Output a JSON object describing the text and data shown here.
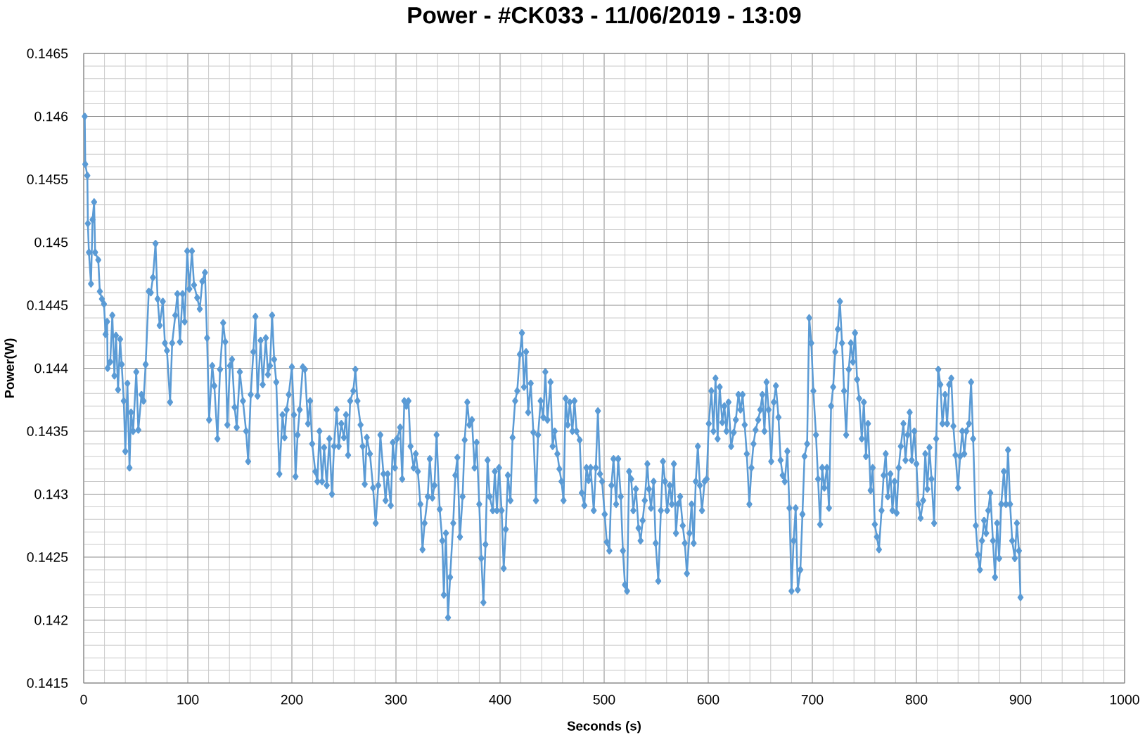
{
  "chart_data": {
    "type": "line",
    "title": "Power - #CK033 - 11/06/2019 - 13:09",
    "xlabel": "Seconds (s)",
    "ylabel": "Power(W)",
    "xlim": [
      0,
      1000
    ],
    "ylim": [
      0.1415,
      0.1465
    ],
    "xticks": [
      0,
      100,
      200,
      300,
      400,
      500,
      600,
      700,
      800,
      900,
      1000
    ],
    "yticks": [
      0.1415,
      0.142,
      0.1425,
      0.143,
      0.1435,
      0.144,
      0.1445,
      0.145,
      0.1455,
      0.146,
      0.1465
    ],
    "grid": true,
    "marker": "diamond",
    "line_style": "solid",
    "x": [
      1,
      1.5,
      3.5,
      4,
      5,
      7,
      8.5,
      10,
      11,
      14,
      15.5,
      17.5,
      19.5,
      21,
      22.5,
      23,
      25.5,
      27.5,
      29.5,
      31,
      33,
      35,
      36.5,
      38.5,
      40,
      42,
      44,
      45.5,
      47.5,
      50.5,
      52.5,
      55.5,
      57.5,
      59.5,
      62.5,
      64.5,
      66.5,
      69,
      71,
      73,
      76,
      78,
      80,
      83,
      85,
      88,
      90,
      92.5,
      95,
      97,
      99.5,
      101.5,
      104,
      106,
      109,
      111.5,
      114,
      116.5,
      118.5,
      120.5,
      123.5,
      125.5,
      128.5,
      131,
      134,
      136,
      138,
      140.5,
      142.5,
      145,
      147,
      150,
      153,
      156,
      158,
      160.5,
      163,
      165,
      167,
      170,
      172,
      175,
      177,
      179,
      181,
      183,
      185,
      188,
      191,
      193,
      195,
      197,
      200,
      202,
      203.5,
      205.5,
      207.5,
      210.5,
      212.5,
      215.5,
      217.5,
      219.5,
      222.5,
      224.5,
      226.5,
      229,
      231,
      233.5,
      236,
      238.5,
      240.5,
      243,
      245,
      247.5,
      250,
      252,
      254,
      256,
      259,
      261,
      263,
      266,
      268,
      270,
      272,
      275,
      278,
      280.5,
      283,
      285,
      288,
      290,
      292,
      295,
      297,
      299,
      301,
      304,
      306,
      308,
      310,
      312,
      314,
      317,
      319,
      321,
      323.5,
      325.5,
      327.5,
      330.5,
      332.5,
      335,
      337,
      339,
      342,
      344.5,
      346,
      348,
      350,
      352,
      355,
      357,
      359,
      361.5,
      364,
      366,
      368.5,
      370.5,
      373,
      375.5,
      377.5,
      380,
      382,
      384,
      386,
      388,
      390,
      393,
      395,
      397,
      399,
      401.5,
      403.5,
      405.5,
      407.5,
      410,
      412,
      414.5,
      416.5,
      419,
      421,
      423,
      425,
      427,
      429.5,
      432,
      434.5,
      436.5,
      439,
      441.5,
      443.5,
      445.5,
      448.5,
      450.5,
      452.5,
      455,
      457,
      459,
      461,
      463,
      465,
      467,
      469.5,
      471.5,
      473.5,
      476.5,
      478.5,
      481,
      483,
      485,
      487,
      490,
      492,
      494,
      496,
      498,
      500.5,
      502.5,
      505,
      507,
      509,
      511.5,
      513.5,
      516,
      518,
      520,
      522,
      524,
      526,
      528,
      530.5,
      533,
      535,
      537,
      539,
      541.5,
      543,
      545,
      547.5,
      549.5,
      552,
      554.5,
      556.5,
      558.5,
      560.5,
      563,
      565,
      567,
      569,
      571,
      573,
      575.5,
      577.5,
      579.5,
      582,
      584,
      586,
      588,
      590,
      592,
      594,
      596.5,
      598.5,
      600.5,
      603,
      605,
      607,
      609,
      611,
      613.5,
      615.5,
      617.5,
      619.5,
      622,
      624.5,
      626.5,
      629,
      631,
      633,
      635,
      637,
      639.5,
      641.5,
      643.5,
      645.5,
      648,
      650,
      652,
      654,
      656,
      658,
      660.5,
      663,
      665,
      667.5,
      669.5,
      671.5,
      673.5,
      676,
      678,
      680,
      682,
      684,
      686,
      688.5,
      690.5,
      692.5,
      695,
      697,
      699,
      701,
      703.5,
      705.5,
      707.5,
      709.5,
      711.5,
      714,
      716,
      718,
      720,
      722,
      724.5,
      726.5,
      728.5,
      730.5,
      732.5,
      735,
      737,
      739,
      741,
      743,
      745,
      747.5,
      749.5,
      751.5,
      753.5,
      756,
      758,
      760,
      762,
      764,
      766.5,
      768.5,
      770.5,
      772.5,
      775,
      777,
      779,
      781,
      783,
      785,
      787.5,
      789.5,
      791.5,
      793.5,
      795.5,
      798,
      800,
      802,
      804,
      806.5,
      808.5,
      810.5,
      812.5,
      814.5,
      817,
      819,
      821,
      823,
      825,
      827.5,
      829.5,
      831.5,
      833.5,
      835.5,
      837.5,
      840,
      842,
      844,
      846,
      848,
      850.5,
      852.5,
      854.5,
      857,
      859,
      861,
      863,
      865,
      867,
      869,
      871,
      873.5,
      875.5,
      877.5,
      879.5,
      881.5,
      884,
      886,
      888,
      890,
      892,
      894.5,
      896.5,
      898.5,
      900
    ],
    "series": [
      {
        "color": "#5b9bd5",
        "values": [
          0.146,
          0.14562,
          0.14553,
          0.14515,
          0.14492,
          0.14467,
          0.14518,
          0.14532,
          0.14492,
          0.14486,
          0.14461,
          0.14455,
          0.14451,
          0.14427,
          0.14437,
          0.144,
          0.14405,
          0.14442,
          0.14394,
          0.14426,
          0.14383,
          0.14423,
          0.14403,
          0.14374,
          0.14334,
          0.14388,
          0.14321,
          0.14365,
          0.1435,
          0.14397,
          0.14351,
          0.14379,
          0.14374,
          0.14403,
          0.14461,
          0.1446,
          0.14472,
          0.14499,
          0.14455,
          0.14434,
          0.14453,
          0.1442,
          0.14414,
          0.14373,
          0.1442,
          0.14442,
          0.14459,
          0.14421,
          0.14459,
          0.14437,
          0.14493,
          0.14463,
          0.14493,
          0.14466,
          0.14456,
          0.14447,
          0.14469,
          0.14476,
          0.14424,
          0.14359,
          0.14402,
          0.14386,
          0.14344,
          0.14399,
          0.14436,
          0.14421,
          0.14355,
          0.14402,
          0.14407,
          0.14369,
          0.14353,
          0.14397,
          0.14374,
          0.1435,
          0.14326,
          0.14379,
          0.14413,
          0.14441,
          0.14378,
          0.14422,
          0.14387,
          0.14424,
          0.14395,
          0.14402,
          0.14442,
          0.14407,
          0.14389,
          0.14316,
          0.14363,
          0.14345,
          0.14367,
          0.14379,
          0.14401,
          0.14363,
          0.14314,
          0.14347,
          0.14367,
          0.14401,
          0.14399,
          0.14356,
          0.14374,
          0.1434,
          0.14318,
          0.1431,
          0.1435,
          0.1431,
          0.14337,
          0.14307,
          0.14344,
          0.143,
          0.14338,
          0.14367,
          0.14338,
          0.14356,
          0.14345,
          0.14363,
          0.14331,
          0.14374,
          0.14382,
          0.14399,
          0.14374,
          0.14355,
          0.14338,
          0.14308,
          0.14345,
          0.14332,
          0.14305,
          0.14277,
          0.14307,
          0.14347,
          0.14316,
          0.14295,
          0.14316,
          0.14291,
          0.14341,
          0.14321,
          0.14344,
          0.14353,
          0.14312,
          0.14374,
          0.1437,
          0.14374,
          0.14338,
          0.14321,
          0.14332,
          0.14318,
          0.14292,
          0.14256,
          0.14277,
          0.14298,
          0.14328,
          0.14297,
          0.14307,
          0.14347,
          0.14288,
          0.14263,
          0.1422,
          0.14269,
          0.14202,
          0.14234,
          0.14277,
          0.14315,
          0.14329,
          0.14266,
          0.14298,
          0.14343,
          0.14373,
          0.14355,
          0.14359,
          0.14321,
          0.14341,
          0.14292,
          0.14249,
          0.14214,
          0.1426,
          0.14327,
          0.14298,
          0.14287,
          0.14318,
          0.14287,
          0.14321,
          0.14287,
          0.14241,
          0.14272,
          0.14315,
          0.14295,
          0.14345,
          0.14374,
          0.14382,
          0.14411,
          0.14428,
          0.14385,
          0.14413,
          0.14365,
          0.14388,
          0.14349,
          0.14295,
          0.14347,
          0.14374,
          0.14361,
          0.14397,
          0.14359,
          0.14389,
          0.14338,
          0.1435,
          0.14332,
          0.1432,
          0.1431,
          0.14295,
          0.14376,
          0.14355,
          0.14373,
          0.1435,
          0.14374,
          0.1435,
          0.14343,
          0.14301,
          0.14291,
          0.14321,
          0.14311,
          0.14321,
          0.14287,
          0.14321,
          0.14366,
          0.14316,
          0.1431,
          0.14284,
          0.14262,
          0.14255,
          0.14307,
          0.14328,
          0.14292,
          0.14328,
          0.14298,
          0.14255,
          0.14228,
          0.14223,
          0.14318,
          0.14312,
          0.14287,
          0.14304,
          0.14273,
          0.14263,
          0.14279,
          0.14295,
          0.14324,
          0.14304,
          0.14289,
          0.1431,
          0.14261,
          0.14231,
          0.14287,
          0.14326,
          0.1431,
          0.14287,
          0.14307,
          0.14292,
          0.14324,
          0.14269,
          0.14292,
          0.14298,
          0.14275,
          0.14261,
          0.14237,
          0.14269,
          0.14292,
          0.14261,
          0.1431,
          0.14338,
          0.14307,
          0.14287,
          0.1431,
          0.14312,
          0.14356,
          0.14382,
          0.1435,
          0.14392,
          0.14344,
          0.14385,
          0.14357,
          0.1437,
          0.1435,
          0.14373,
          0.14338,
          0.14349,
          0.14359,
          0.14379,
          0.14367,
          0.14379,
          0.14355,
          0.14332,
          0.14292,
          0.14321,
          0.1434,
          0.14351,
          0.14359,
          0.14367,
          0.14379,
          0.1435,
          0.14389,
          0.14367,
          0.14326,
          0.14373,
          0.14386,
          0.14361,
          0.14327,
          0.14315,
          0.1431,
          0.14334,
          0.14289,
          0.14223,
          0.14263,
          0.14289,
          0.14224,
          0.1424,
          0.14284,
          0.1433,
          0.1434,
          0.1444,
          0.1442,
          0.14382,
          0.14347,
          0.14312,
          0.14276,
          0.14321,
          0.14305,
          0.14321,
          0.14289,
          0.1437,
          0.14385,
          0.14413,
          0.14431,
          0.14453,
          0.1442,
          0.14382,
          0.14347,
          0.14399,
          0.1442,
          0.14405,
          0.14428,
          0.14391,
          0.14376,
          0.14344,
          0.14373,
          0.1433,
          0.14356,
          0.14303,
          0.14321,
          0.14276,
          0.14266,
          0.14256,
          0.14287,
          0.14315,
          0.14332,
          0.14298,
          0.14316,
          0.14287,
          0.1431,
          0.14285,
          0.14321,
          0.14338,
          0.14356,
          0.14327,
          0.14347,
          0.14365,
          0.14327,
          0.1435,
          0.14324,
          0.14292,
          0.14281,
          0.14295,
          0.14332,
          0.14304,
          0.14337,
          0.14312,
          0.14277,
          0.14344,
          0.14399,
          0.14387,
          0.14356,
          0.14379,
          0.14356,
          0.14387,
          0.14392,
          0.14354,
          0.14331,
          0.14305,
          0.1433,
          0.1435,
          0.14332,
          0.1435,
          0.14356,
          0.14389,
          0.14344,
          0.14275,
          0.14252,
          0.1424,
          0.14263,
          0.14279,
          0.14269,
          0.14287,
          0.14301,
          0.14263,
          0.14234,
          0.14277,
          0.14249,
          0.14292,
          0.14318,
          0.14292,
          0.14335,
          0.14292,
          0.14263,
          0.14249,
          0.14277,
          0.14255,
          0.14218
        ]
      }
    ]
  }
}
